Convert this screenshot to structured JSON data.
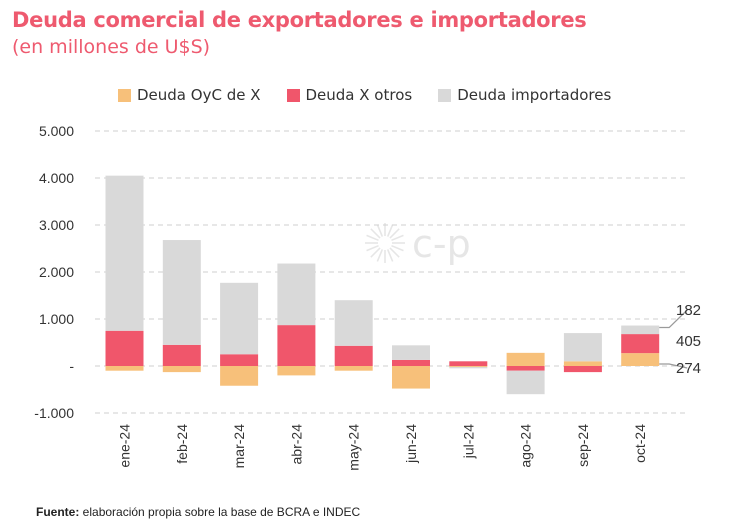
{
  "title": "Deuda comercial de exportadores e importadores",
  "subtitle": "(en millones de U$S)",
  "footer": {
    "label": "Fuente:",
    "text": " elaboración propia sobre la base de BCRA e INDEC"
  },
  "watermark": "c-p",
  "colors": {
    "oyc": "#f7c07a",
    "otros": "#f0566b",
    "importadores": "#d9d9d9",
    "title": "#ee5a6f"
  },
  "chart_data": {
    "type": "bar",
    "stacked": true,
    "categories": [
      "ene-24",
      "feb-24",
      "mar-24",
      "abr-24",
      "may-24",
      "jun-24",
      "jul-24",
      "ago-24",
      "sep-24",
      "oct-24"
    ],
    "series": [
      {
        "name": "Deuda OyC de X",
        "color": "#f7c07a",
        "values": [
          -100,
          -130,
          -420,
          -200,
          -100,
          -480,
          -20,
          280,
          100,
          274
        ]
      },
      {
        "name": "Deuda X otros",
        "color": "#f0566b",
        "values": [
          750,
          450,
          250,
          870,
          430,
          130,
          100,
          -100,
          -130,
          405
        ]
      },
      {
        "name": "Deuda importadores",
        "color": "#d9d9d9",
        "values": [
          3300,
          2230,
          1520,
          1310,
          970,
          310,
          -30,
          -500,
          600,
          182
        ]
      }
    ],
    "ylim": [
      -1000,
      5000
    ],
    "yticks": [
      {
        "value": 5000,
        "label": "5.000"
      },
      {
        "value": 4000,
        "label": "4.000"
      },
      {
        "value": 3000,
        "label": "3.000"
      },
      {
        "value": 2000,
        "label": "2.000"
      },
      {
        "value": 1000,
        "label": "1.000"
      },
      {
        "value": 0,
        "label": "-"
      },
      {
        "value": -1000,
        "label": "-1.000"
      }
    ],
    "grid": true,
    "legend_position": "top",
    "annotations": [
      {
        "category": "oct-24",
        "series": "Deuda importadores",
        "label": "182"
      },
      {
        "category": "oct-24",
        "series": "Deuda X otros",
        "label": "405"
      },
      {
        "category": "oct-24",
        "series": "Deuda OyC de X",
        "label": "274"
      }
    ]
  }
}
